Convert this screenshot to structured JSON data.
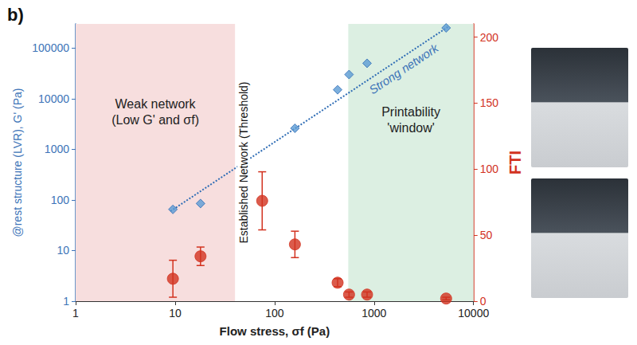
{
  "chart_data": {
    "type": "scatter",
    "panel": "b)",
    "xlabel": "Flow stress, σf (Pa)",
    "ylabel": "@rest structure (LVR), G' (Pa)",
    "y2label": "FTI",
    "log": true,
    "grid": false,
    "xlim": [
      1,
      10000
    ],
    "xticks": [
      1,
      10,
      100,
      1000,
      10000
    ],
    "ylim": [
      1,
      300000
    ],
    "yticks": [
      1,
      10,
      100,
      1000,
      10000,
      100000
    ],
    "y2lim": [
      0,
      210
    ],
    "y2ticks": [
      0,
      50,
      100,
      150,
      200
    ],
    "series": [
      {
        "type": "scatter",
        "x": [
          9.5,
          18,
          160,
          430,
          560,
          850,
          5300
        ],
        "values": [
          65,
          85,
          2600,
          15000,
          30000,
          50000,
          250000
        ],
        "color": "#5b9bd5",
        "marker": "diamond"
      },
      {
        "type": "line",
        "x": [
          9,
          5500
        ],
        "values": [
          60,
          260000
        ],
        "color": "#2f6db5",
        "line_style": "dotted"
      },
      {
        "type": "scatter",
        "axis": "y2",
        "x": [
          9.5,
          18,
          75,
          160,
          430,
          560,
          850,
          5300
        ],
        "values": [
          17,
          34,
          76,
          43,
          14,
          5,
          5,
          2
        ],
        "errors": [
          14,
          7,
          22,
          10,
          3,
          2,
          2,
          1
        ],
        "color": "#d2321f",
        "marker": "circle"
      }
    ],
    "regions": [
      {
        "x": [
          1,
          40
        ],
        "color": "#f7dede",
        "label": [
          "Weak network",
          "(Low G' and σf)"
        ]
      },
      {
        "x": [
          550,
          10000
        ],
        "color": "#dcefe2",
        "label": [
          "Printability",
          "'window'"
        ]
      }
    ],
    "annotations": {
      "threshold": "Established Network (Threshold)",
      "strong": "Strong network"
    }
  }
}
